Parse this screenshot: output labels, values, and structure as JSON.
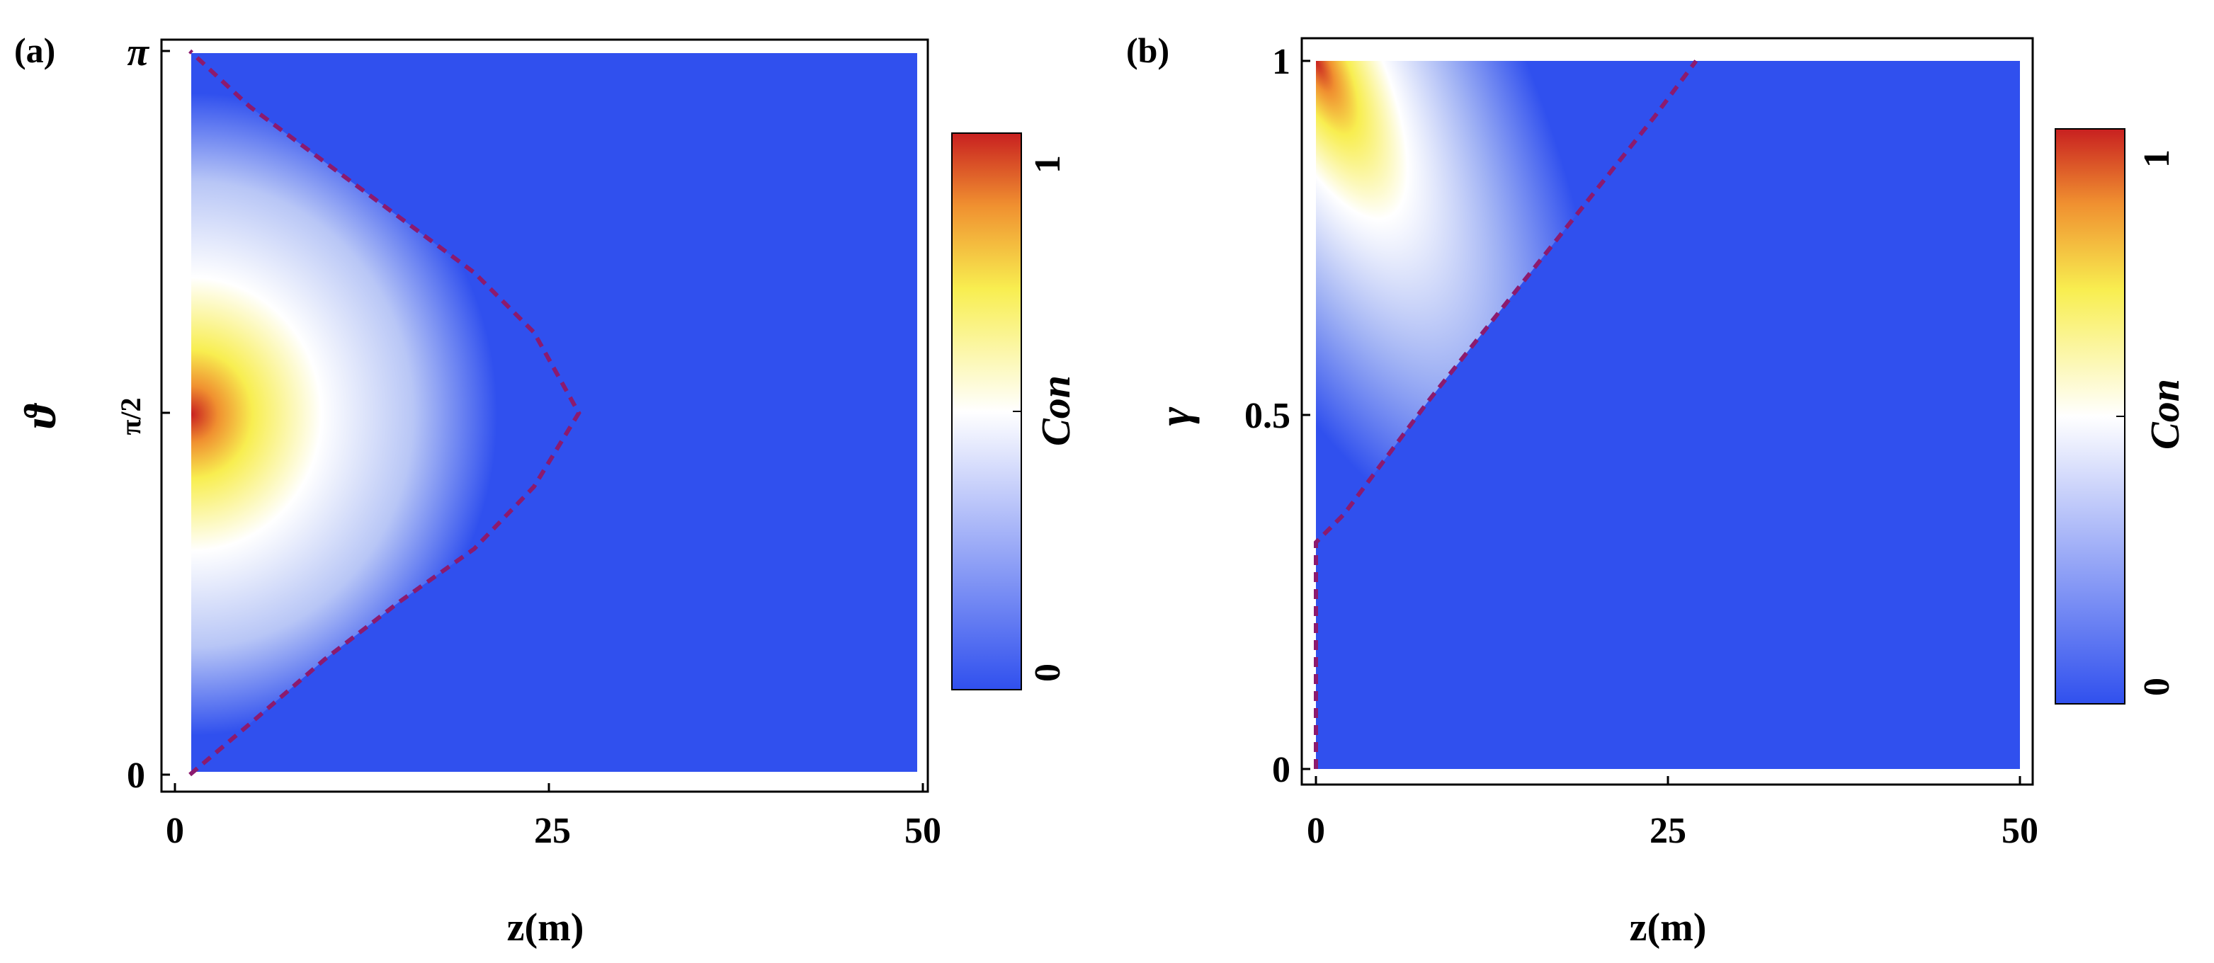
{
  "chart_data": [
    {
      "panel_label": "(a)",
      "type": "heatmap",
      "xlabel": "z(m)",
      "ylabel": "ϑ",
      "x_ticks": [
        {
          "value": 0,
          "label": "0"
        },
        {
          "value": 25,
          "label": "25"
        },
        {
          "value": 50,
          "label": "50"
        }
      ],
      "y_ticks": [
        {
          "value": 0,
          "label": "0"
        },
        {
          "value": 1.5708,
          "label": "π/2"
        },
        {
          "value": 3.1416,
          "label": "π"
        }
      ],
      "xlim": [
        0,
        50
      ],
      "ylim": [
        0,
        3.1416
      ],
      "colorbar": {
        "label": "Con",
        "min": 0,
        "max": 1,
        "min_label": "0",
        "max_label": "1"
      },
      "colormap": [
        "#3050ee",
        "#ffffff",
        "#f8ee50",
        "#f09030",
        "#c82020"
      ],
      "description_of_field": "Con is maximal (≈1) at z=0, ϑ=π/2 and decays with z; zero beyond the dashed boundary",
      "boundary_curve": {
        "style": "dashed",
        "color": "#8c1a6e",
        "points": [
          [
            1,
            0
          ],
          [
            5,
            0.22
          ],
          [
            10,
            0.5
          ],
          [
            15,
            0.75
          ],
          [
            20,
            0.98
          ],
          [
            24,
            1.25
          ],
          [
            27,
            1.57
          ],
          [
            24,
            1.92
          ],
          [
            20,
            2.18
          ],
          [
            15,
            2.42
          ],
          [
            10,
            2.66
          ],
          [
            5,
            2.9
          ],
          [
            1,
            3.1416
          ]
        ]
      }
    },
    {
      "panel_label": "(b)",
      "type": "heatmap",
      "xlabel": "z(m)",
      "ylabel": "γ",
      "x_ticks": [
        {
          "value": 0,
          "label": "0"
        },
        {
          "value": 25,
          "label": "25"
        },
        {
          "value": 50,
          "label": "50"
        }
      ],
      "y_ticks": [
        {
          "value": 0,
          "label": "0"
        },
        {
          "value": 0.5,
          "label": "0.5"
        },
        {
          "value": 1,
          "label": "1"
        }
      ],
      "xlim": [
        0,
        50
      ],
      "ylim": [
        0,
        1
      ],
      "colorbar": {
        "label": "Con",
        "min": 0,
        "max": 1,
        "min_label": "0",
        "max_label": "1"
      },
      "colormap": [
        "#3050ee",
        "#ffffff",
        "#f8ee50",
        "#f09030",
        "#c82020"
      ],
      "description_of_field": "Con is maximal at z=0, γ=1 and decays with z and with decreasing γ; zero below/right of the dashed boundary",
      "boundary_curve": {
        "style": "dashed",
        "color": "#8c1a6e",
        "points": [
          [
            0,
            0
          ],
          [
            0,
            0.32
          ],
          [
            2,
            0.36
          ],
          [
            5,
            0.44
          ],
          [
            8,
            0.52
          ],
          [
            12,
            0.62
          ],
          [
            16,
            0.72
          ],
          [
            20,
            0.82
          ],
          [
            24,
            0.92
          ],
          [
            27,
            1.0
          ]
        ]
      }
    }
  ]
}
